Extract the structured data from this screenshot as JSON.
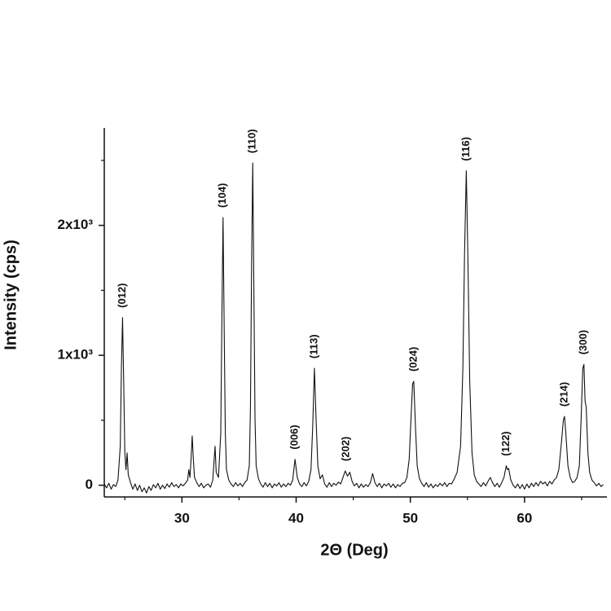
{
  "chart_data": {
    "type": "line",
    "xlabel": "2Θ (Deg)",
    "ylabel": "Intensity (cps)",
    "xlim": [
      23.2,
      67
    ],
    "ylim": [
      -90,
      2750
    ],
    "xticks": [
      30,
      40,
      50,
      60
    ],
    "xminorticks": [
      25,
      35,
      45,
      55,
      65
    ],
    "yticks": [
      0,
      {
        "value": 1000,
        "label": "1x10³"
      },
      {
        "value": 2000,
        "label": "2x10³"
      }
    ],
    "yminorticks": [
      500,
      1500,
      2500
    ],
    "x": [
      23.2,
      23.4,
      23.6,
      23.8,
      24.0,
      24.2,
      24.4,
      24.6,
      24.7,
      24.8,
      24.9,
      25.0,
      25.1,
      25.2,
      25.3,
      25.5,
      25.7,
      25.9,
      26.1,
      26.3,
      26.5,
      26.7,
      26.9,
      27.1,
      27.3,
      27.5,
      27.7,
      27.9,
      28.1,
      28.3,
      28.5,
      28.7,
      28.9,
      29.1,
      29.3,
      29.5,
      29.7,
      29.9,
      30.1,
      30.3,
      30.5,
      30.6,
      30.7,
      30.8,
      30.9,
      31.0,
      31.1,
      31.3,
      31.5,
      31.7,
      31.9,
      32.1,
      32.3,
      32.5,
      32.7,
      32.9,
      33.0,
      33.2,
      33.4,
      33.5,
      33.6,
      33.7,
      33.8,
      33.9,
      34.1,
      34.3,
      34.5,
      34.7,
      34.9,
      35.1,
      35.3,
      35.5,
      35.7,
      35.9,
      36.0,
      36.1,
      36.2,
      36.3,
      36.4,
      36.5,
      36.7,
      36.9,
      37.1,
      37.3,
      37.5,
      37.7,
      37.9,
      38.1,
      38.3,
      38.5,
      38.7,
      38.9,
      39.1,
      39.3,
      39.5,
      39.7,
      39.9,
      40.1,
      40.3,
      40.5,
      40.7,
      40.9,
      41.1,
      41.3,
      41.45,
      41.6,
      41.75,
      41.9,
      42.1,
      42.3,
      42.5,
      42.7,
      42.9,
      43.1,
      43.3,
      43.5,
      43.7,
      43.9,
      44.1,
      44.3,
      44.5,
      44.7,
      44.9,
      45.1,
      45.3,
      45.5,
      45.7,
      45.9,
      46.1,
      46.3,
      46.5,
      46.7,
      46.9,
      47.1,
      47.3,
      47.5,
      47.7,
      47.9,
      48.1,
      48.3,
      48.5,
      48.7,
      48.9,
      49.1,
      49.3,
      49.5,
      49.7,
      49.9,
      50.05,
      50.2,
      50.3,
      50.45,
      50.6,
      50.8,
      51.0,
      51.2,
      51.4,
      51.6,
      51.8,
      52.0,
      52.2,
      52.4,
      52.6,
      52.8,
      53.0,
      53.2,
      53.4,
      53.6,
      53.8,
      54.1,
      54.4,
      54.6,
      54.75,
      54.9,
      55.05,
      55.2,
      55.4,
      55.6,
      55.8,
      56.0,
      56.2,
      56.4,
      56.6,
      56.8,
      57.0,
      57.2,
      57.4,
      57.6,
      57.8,
      58.0,
      58.2,
      58.4,
      58.5,
      58.6,
      58.8,
      59.0,
      59.2,
      59.4,
      59.6,
      59.8,
      60.0,
      60.2,
      60.4,
      60.6,
      60.8,
      61.0,
      61.2,
      61.4,
      61.6,
      61.8,
      62.0,
      62.2,
      62.4,
      62.6,
      62.8,
      63.0,
      63.2,
      63.4,
      63.5,
      63.6,
      63.8,
      64.0,
      64.2,
      64.4,
      64.6,
      64.8,
      64.95,
      65.1,
      65.2,
      65.3,
      65.4,
      65.55,
      65.7,
      65.9,
      66.1,
      66.3,
      66.5,
      66.7,
      66.9
    ],
    "series": [
      {
        "color": "#111111",
        "values": [
          10,
          -20,
          15,
          -30,
          5,
          -10,
          40,
          300,
          900,
          1290,
          800,
          250,
          120,
          250,
          80,
          20,
          -30,
          10,
          -40,
          0,
          -50,
          -20,
          -60,
          -10,
          -40,
          5,
          -20,
          15,
          -30,
          0,
          -25,
          10,
          -15,
          20,
          -10,
          5,
          -20,
          10,
          -5,
          15,
          40,
          120,
          60,
          200,
          380,
          200,
          60,
          20,
          -10,
          15,
          -20,
          0,
          10,
          -15,
          40,
          300,
          100,
          60,
          400,
          1300,
          2060,
          1200,
          400,
          120,
          40,
          10,
          -10,
          20,
          -5,
          15,
          -10,
          20,
          40,
          150,
          600,
          1700,
          2480,
          1500,
          500,
          150,
          50,
          10,
          -15,
          20,
          -10,
          15,
          -20,
          10,
          -5,
          20,
          -15,
          10,
          -10,
          15,
          0,
          40,
          200,
          60,
          10,
          -10,
          20,
          -5,
          30,
          120,
          450,
          900,
          500,
          150,
          50,
          80,
          10,
          -15,
          20,
          -10,
          15,
          0,
          25,
          10,
          60,
          110,
          70,
          100,
          30,
          -5,
          15,
          -20,
          10,
          -15,
          5,
          -10,
          20,
          90,
          20,
          -10,
          15,
          -20,
          10,
          -5,
          15,
          -15,
          10,
          -20,
          5,
          -10,
          15,
          20,
          60,
          200,
          500,
          780,
          800,
          450,
          150,
          50,
          15,
          -10,
          20,
          -15,
          10,
          -20,
          5,
          -10,
          15,
          -5,
          20,
          -10,
          15,
          10,
          40,
          100,
          300,
          900,
          1800,
          2420,
          1700,
          800,
          250,
          80,
          30,
          10,
          -10,
          20,
          -5,
          30,
          60,
          20,
          -10,
          15,
          -15,
          20,
          60,
          150,
          120,
          130,
          40,
          0,
          -20,
          10,
          -25,
          5,
          -30,
          10,
          -20,
          15,
          -10,
          20,
          -5,
          30,
          10,
          25,
          -5,
          30,
          10,
          40,
          60,
          120,
          300,
          500,
          530,
          420,
          150,
          60,
          20,
          30,
          60,
          150,
          500,
          900,
          930,
          650,
          600,
          250,
          100,
          40,
          20,
          -5,
          15,
          -10,
          5
        ]
      }
    ],
    "annotations": [
      {
        "text": "(012)",
        "x": 24.8
      },
      {
        "text": "(104)",
        "x": 33.6
      },
      {
        "text": "(110)",
        "x": 36.2
      },
      {
        "text": "(006)",
        "x": 39.9
      },
      {
        "text": "(113)",
        "x": 41.6
      },
      {
        "text": "(202)",
        "x": 44.4
      },
      {
        "text": "(024)",
        "x": 50.3
      },
      {
        "text": "(116)",
        "x": 54.9
      },
      {
        "text": "(122)",
        "x": 58.4
      },
      {
        "text": "(214)",
        "x": 63.5
      },
      {
        "text": "(300)",
        "x": 65.2
      }
    ]
  }
}
